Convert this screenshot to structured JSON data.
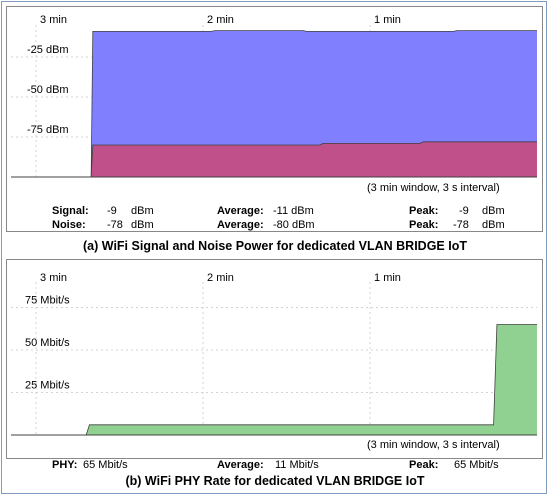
{
  "panel_a": {
    "caption": "(a) WiFi Signal and Noise Power for dedicated VLAN BRIDGE IoT",
    "window_note": "(3 min window, 3 s interval)",
    "stats": {
      "signal_label": "Signal:",
      "signal_value": "-9",
      "signal_unit": "dBm",
      "noise_label": "Noise:",
      "noise_value": "-78",
      "noise_unit": "dBm",
      "avg_label": "Average:",
      "avg_signal": "-11 dBm",
      "avg_noise": "-80 dBm",
      "peak_label": "Peak:",
      "peak_signal_value": "-9",
      "peak_signal_unit": "dBm",
      "peak_noise_value": "-78",
      "peak_noise_unit": "dBm"
    }
  },
  "panel_b": {
    "caption": "(b) WiFi PHY Rate for dedicated VLAN BRIDGE IoT",
    "window_note": "(3 min window, 3 s interval)",
    "stats": {
      "phy_label": "PHY:",
      "phy_value": "65 Mbit/s",
      "avg_label": "Average:",
      "avg_value": "11 Mbit/s",
      "peak_label": "Peak:",
      "peak_value": "65 Mbit/s"
    }
  },
  "chart_data": [
    {
      "type": "area",
      "x_ticks": [
        "3 min",
        "2 min",
        "1 min"
      ],
      "x_tick_positions_min_ago": [
        3,
        2,
        1
      ],
      "y_ticks": [
        "-25 dBm",
        "-50 dBm",
        "-75 dBm"
      ],
      "y_tick_values": [
        -25,
        -50,
        -75
      ],
      "ylim": [
        -100,
        -5
      ],
      "xlim_min_ago": [
        3.15,
        0
      ],
      "grid": true,
      "series": [
        {
          "color": "#8080ff",
          "x_min_ago": [
            3.15,
            2.67,
            2.66,
            2.2,
            1.95,
            1.93,
            1.4,
            1.38,
            1.1,
            0.5,
            0.48,
            0
          ],
          "values": [
            -100,
            -100,
            -9,
            -9,
            -9,
            -8.5,
            -8.5,
            -9,
            -9,
            -9,
            -8.5,
            -8.5
          ]
        },
        {
          "color": "#c0508a",
          "x_min_ago": [
            3.15,
            2.67,
            2.66,
            1.3,
            1.28,
            0.7,
            0.68,
            0
          ],
          "values": [
            -100,
            -100,
            -80,
            -80,
            -79,
            -79,
            -78,
            -78
          ]
        }
      ]
    },
    {
      "type": "area",
      "x_ticks": [
        "3 min",
        "2 min",
        "1 min"
      ],
      "x_tick_positions_min_ago": [
        3,
        2,
        1
      ],
      "y_ticks": [
        "75 Mbit/s",
        "50 Mbit/s",
        "25 Mbit/s"
      ],
      "y_tick_values": [
        75,
        50,
        25
      ],
      "ylim": [
        0,
        90
      ],
      "xlim_min_ago": [
        3.15,
        0
      ],
      "grid": true,
      "series": [
        {
          "color": "#90d090",
          "x_min_ago": [
            3.15,
            2.7,
            2.68,
            0.26,
            0.24,
            0
          ],
          "values": [
            0,
            0,
            6,
            6,
            65,
            65
          ]
        }
      ]
    }
  ]
}
